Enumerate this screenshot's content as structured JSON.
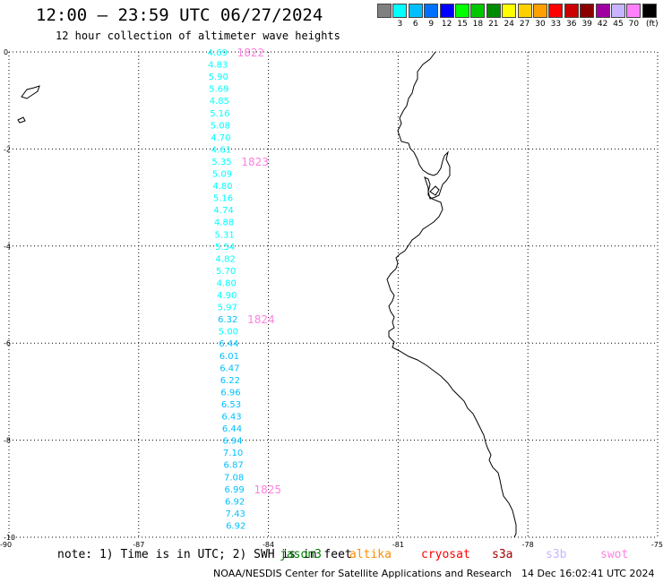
{
  "header": {
    "title": "12:00 – 23:59 UTC 06/27/2024",
    "subtitle": "12 hour collection of altimeter wave heights"
  },
  "legend": {
    "unit": "(ft)",
    "items": [
      {
        "label": "",
        "color": "#808080"
      },
      {
        "label": "3",
        "color": "#00ffff"
      },
      {
        "label": "6",
        "color": "#00bfff"
      },
      {
        "label": "9",
        "color": "#0070ff"
      },
      {
        "label": "12",
        "color": "#0000ff"
      },
      {
        "label": "15",
        "color": "#00ff00"
      },
      {
        "label": "18",
        "color": "#00c800"
      },
      {
        "label": "21",
        "color": "#008c00"
      },
      {
        "label": "24",
        "color": "#ffff00"
      },
      {
        "label": "27",
        "color": "#ffd000"
      },
      {
        "label": "30",
        "color": "#ffa000"
      },
      {
        "label": "33",
        "color": "#ff0000"
      },
      {
        "label": "36",
        "color": "#cc0000"
      },
      {
        "label": "39",
        "color": "#8b0000"
      },
      {
        "label": "42",
        "color": "#a000a0"
      },
      {
        "label": "45",
        "color": "#c8b4ff"
      },
      {
        "label": "70",
        "color": "#ff80ff"
      },
      {
        "label": "",
        "color": "#000000"
      }
    ]
  },
  "map": {
    "lon_range": [
      -90,
      -75
    ],
    "lat_range": [
      -10,
      0
    ],
    "x_ticks": [
      "-90",
      "-87",
      "-84",
      "-81",
      "-78",
      "-75"
    ],
    "y_ticks": [
      "0",
      "-2",
      "-4",
      "-6",
      "-8",
      "-10"
    ],
    "track_lon": -84.0,
    "measurements": [
      {
        "v": "4.69",
        "lat": 0.0,
        "color": "#00ffff"
      },
      {
        "v": "4.83",
        "lat": -0.25,
        "color": "#00ffff"
      },
      {
        "v": "5.90",
        "lat": -0.5,
        "color": "#00ffff"
      },
      {
        "v": "5.69",
        "lat": -0.75,
        "color": "#00ffff"
      },
      {
        "v": "4.85",
        "lat": -1.0,
        "color": "#00ffff"
      },
      {
        "v": "5.16",
        "lat": -1.25,
        "color": "#00ffff"
      },
      {
        "v": "5.08",
        "lat": -1.5,
        "color": "#00ffff"
      },
      {
        "v": "4.70",
        "lat": -1.75,
        "color": "#00ffff"
      },
      {
        "v": "4.61",
        "lat": -2.0,
        "color": "#00ffff"
      },
      {
        "v": "5.35",
        "lat": -2.25,
        "color": "#00ffff"
      },
      {
        "v": "5.09",
        "lat": -2.5,
        "color": "#00ffff"
      },
      {
        "v": "4.80",
        "lat": -2.75,
        "color": "#00ffff"
      },
      {
        "v": "5.16",
        "lat": -3.0,
        "color": "#00ffff"
      },
      {
        "v": "4.74",
        "lat": -3.25,
        "color": "#00ffff"
      },
      {
        "v": "4.88",
        "lat": -3.5,
        "color": "#00ffff"
      },
      {
        "v": "5.31",
        "lat": -3.75,
        "color": "#00ffff"
      },
      {
        "v": "5.54",
        "lat": -4.0,
        "color": "#00ffff"
      },
      {
        "v": "4.82",
        "lat": -4.25,
        "color": "#00ffff"
      },
      {
        "v": "5.70",
        "lat": -4.5,
        "color": "#00ffff"
      },
      {
        "v": "4.80",
        "lat": -4.75,
        "color": "#00ffff"
      },
      {
        "v": "4.90",
        "lat": -5.0,
        "color": "#00ffff"
      },
      {
        "v": "5.97",
        "lat": -5.25,
        "color": "#00ffff"
      },
      {
        "v": "6.32",
        "lat": -5.5,
        "color": "#00bfff"
      },
      {
        "v": "5.00",
        "lat": -5.75,
        "color": "#00ffff"
      },
      {
        "v": "6.44",
        "lat": -6.0,
        "color": "#00bfff"
      },
      {
        "v": "6.01",
        "lat": -6.25,
        "color": "#00bfff"
      },
      {
        "v": "6.47",
        "lat": -6.5,
        "color": "#00bfff"
      },
      {
        "v": "6.22",
        "lat": -6.75,
        "color": "#00bfff"
      },
      {
        "v": "6.96",
        "lat": -7.0,
        "color": "#00bfff"
      },
      {
        "v": "6.53",
        "lat": -7.25,
        "color": "#00bfff"
      },
      {
        "v": "6.43",
        "lat": -7.5,
        "color": "#00bfff"
      },
      {
        "v": "6.44",
        "lat": -7.75,
        "color": "#00bfff"
      },
      {
        "v": "6.94",
        "lat": -8.0,
        "color": "#00bfff"
      },
      {
        "v": "7.10",
        "lat": -8.25,
        "color": "#00bfff"
      },
      {
        "v": "6.87",
        "lat": -8.5,
        "color": "#00bfff"
      },
      {
        "v": "7.08",
        "lat": -8.75,
        "color": "#00bfff"
      },
      {
        "v": "6.99",
        "lat": -9.0,
        "color": "#00bfff"
      },
      {
        "v": "6.92",
        "lat": -9.25,
        "color": "#00bfff"
      },
      {
        "v": "7.43",
        "lat": -9.5,
        "color": "#00bfff"
      },
      {
        "v": "6.92",
        "lat": -9.75,
        "color": "#00bfff"
      }
    ],
    "time_labels": [
      {
        "t": "1822",
        "lat": 0.0,
        "color": "#ff80e0"
      },
      {
        "t": "1823",
        "lat": -2.25,
        "color": "#ff80e0"
      },
      {
        "t": "1824",
        "lat": -5.5,
        "color": "#ff80e0"
      },
      {
        "t": "1825",
        "lat": -9.0,
        "color": "#ff80e0"
      }
    ]
  },
  "footer": {
    "note": "note:  1) Time is in UTC; 2) SWH is in feet",
    "satellites": [
      {
        "name": "jason3",
        "color": "#008000"
      },
      {
        "name": "altika",
        "color": "#ff8c00"
      },
      {
        "name": "cryosat",
        "color": "#ff0000"
      },
      {
        "name": "s3a",
        "color": "#a00000"
      },
      {
        "name": "s3b",
        "color": "#c8b4ff"
      },
      {
        "name": "swot",
        "color": "#ff80e0"
      }
    ],
    "credit": "NOAA/NESDIS Center for Satellite Applications and Research",
    "timestamp": "14 Dec 16:02:41 UTC 2024"
  }
}
